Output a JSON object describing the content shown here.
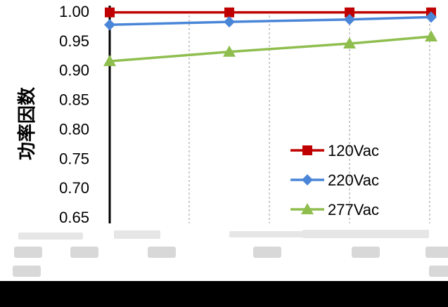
{
  "chart_data": {
    "type": "line",
    "ylabel": "功率因数",
    "xlabel": "",
    "ylim": [
      0.65,
      1.0
    ],
    "yticks": [
      "1.00",
      "0.95",
      "0.90",
      "0.85",
      "0.80",
      "0.75",
      "0.70",
      "0.65"
    ],
    "x": [
      1,
      2,
      3,
      4
    ],
    "series": [
      {
        "name": "120Vac",
        "color": "#c00000",
        "marker": "square",
        "values": [
          0.998,
          0.998,
          0.998,
          0.998
        ]
      },
      {
        "name": "220Vac",
        "color": "#4a86d8",
        "marker": "diamond",
        "values": [
          0.977,
          0.982,
          0.986,
          0.99
        ]
      },
      {
        "name": "277Vac",
        "color": "#8fbe4f",
        "marker": "triangle",
        "values": [
          0.915,
          0.931,
          0.945,
          0.957
        ]
      }
    ],
    "grid": "vertical dashed",
    "legend": "bottom-right"
  },
  "bottom_band": {
    "color": "#000000"
  }
}
